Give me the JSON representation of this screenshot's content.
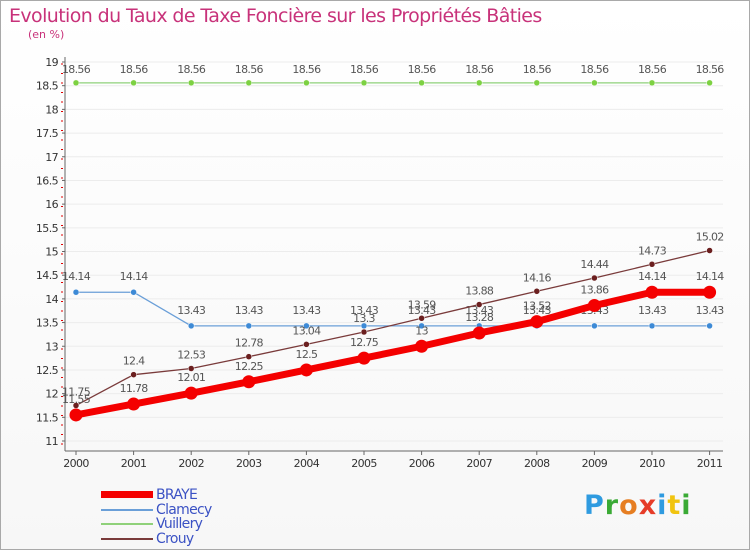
{
  "title": "Evolution du Taux de Taxe Foncière sur les Propriétés Bâties",
  "unit_label": "(en %)",
  "logo": {
    "text": "Proxiti",
    "letters": [
      {
        "ch": "P",
        "color": "#2f9be0"
      },
      {
        "ch": "r",
        "color": "#3aaa35"
      },
      {
        "ch": "o",
        "color": "#e67e22"
      },
      {
        "ch": "x",
        "color": "#e63c28"
      },
      {
        "ch": "i",
        "color": "#2f9be0"
      },
      {
        "ch": "t",
        "color": "#f1c40f"
      },
      {
        "ch": "i",
        "color": "#3aaa35"
      }
    ]
  },
  "chart_data": {
    "type": "line",
    "title": "Evolution du Taux de Taxe Foncière sur les Propriétés Bâties",
    "ylabel": "(en %)",
    "xlabel": "",
    "ylim": [
      11,
      19
    ],
    "yticks": [
      "11",
      "11.5",
      "12",
      "12.5",
      "13",
      "13.5",
      "14",
      "14.5",
      "15",
      "15.5",
      "16",
      "16.5",
      "17",
      "17.5",
      "18",
      "18.5",
      "19"
    ],
    "categories": [
      "2000",
      "2001",
      "2002",
      "2003",
      "2004",
      "2005",
      "2006",
      "2007",
      "2008",
      "2009",
      "2010",
      "2011"
    ],
    "legend_position": "bottom-left",
    "series": [
      {
        "name": "BRAYE",
        "color": "#f40000",
        "marker_color": "#f40000",
        "values": [
          11.55,
          11.78,
          12.01,
          12.25,
          12.5,
          12.75,
          13,
          13.28,
          13.52,
          13.86,
          14.14,
          14.14
        ],
        "labels": [
          "11.55",
          "11.78",
          "12.01",
          "12.25",
          "12.5",
          "12.75",
          "13",
          "13.28",
          "13.52",
          "13.86",
          "14.14",
          "14.14"
        ]
      },
      {
        "name": "Clamecy",
        "color": "#6a9fd8",
        "marker_color": "#3d8ad6",
        "values": [
          14.14,
          14.14,
          13.43,
          13.43,
          13.43,
          13.43,
          13.43,
          13.43,
          13.43,
          13.43,
          13.43,
          13.43
        ],
        "labels": [
          "14.14",
          "14.14",
          "13.43",
          "13.43",
          "13.43",
          "13.43",
          "13.43",
          "13.43",
          "13.43",
          "13.43",
          "13.43",
          "13.43"
        ]
      },
      {
        "name": "Vuillery",
        "color": "#8fd17a",
        "marker_color": "#7dd142",
        "values": [
          18.56,
          18.56,
          18.56,
          18.56,
          18.56,
          18.56,
          18.56,
          18.56,
          18.56,
          18.56,
          18.56,
          18.56
        ],
        "labels": [
          "18.56",
          "18.56",
          "18.56",
          "18.56",
          "18.56",
          "18.56",
          "18.56",
          "18.56",
          "18.56",
          "18.56",
          "18.56",
          "18.56"
        ]
      },
      {
        "name": "Crouy",
        "color": "#7a3b3b",
        "marker_color": "#6b1f1f",
        "values": [
          11.75,
          12.4,
          12.53,
          12.78,
          13.04,
          13.3,
          13.59,
          13.88,
          14.16,
          14.44,
          14.73,
          15.02
        ],
        "labels": [
          "11.75",
          "12.4",
          "12.53",
          "12.78",
          "13.04",
          "13.3",
          "13.59",
          "13.88",
          "14.16",
          "14.44",
          "14.73",
          "15.02"
        ]
      }
    ]
  }
}
